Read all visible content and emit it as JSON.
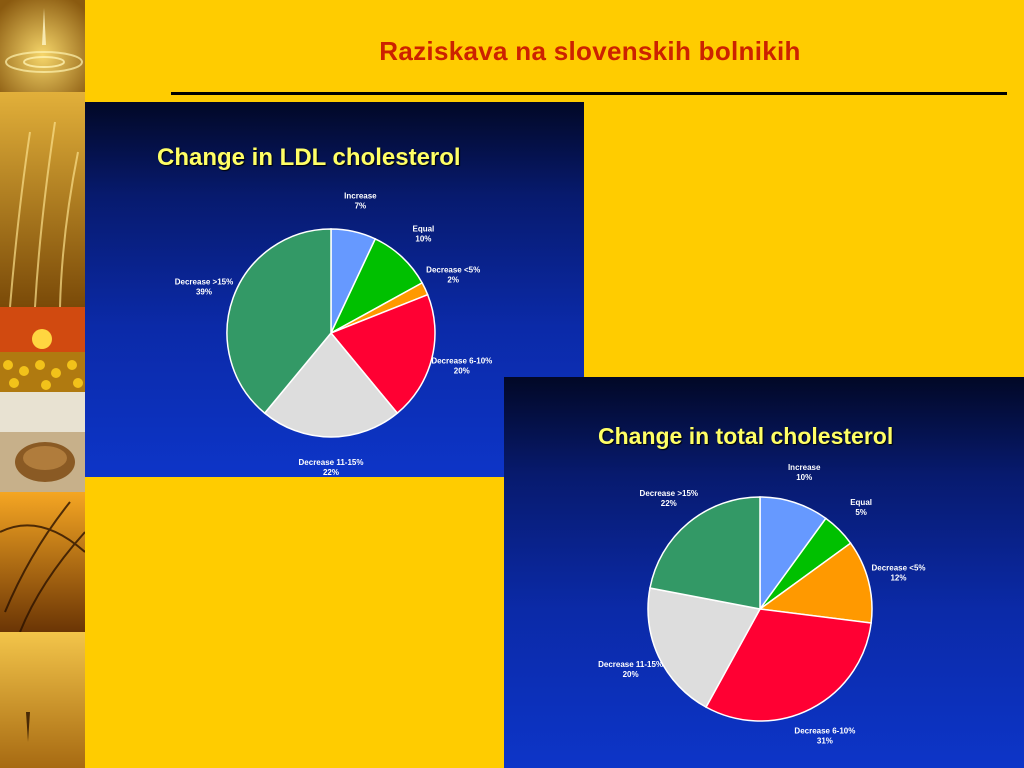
{
  "slide": {
    "title": "Raziskava na slovenskih bolnikih",
    "background": "#FFCC00",
    "title_color": "#CC2200"
  },
  "chart_data": [
    {
      "type": "pie",
      "title": "Change in LDL cholesterol",
      "start_angle_deg": 0,
      "direction": "clockwise",
      "slices": [
        {
          "label": "Increase",
          "value": 7,
          "pct": "7%",
          "color": "#6699FF"
        },
        {
          "label": "Equal",
          "value": 10,
          "pct": "10%",
          "color": "#00C000"
        },
        {
          "label": "Decrease <5%",
          "value": 2,
          "pct": "2%",
          "color": "#FF9900"
        },
        {
          "label": "Decrease 6-10%",
          "value": 20,
          "pct": "20%",
          "color": "#FF0033"
        },
        {
          "label": "Decrease 11-15%",
          "value": 22,
          "pct": "22%",
          "color": "#DDDDDD"
        },
        {
          "label": "Decrease >15%",
          "value": 39,
          "pct": "39%",
          "color": "#339966"
        }
      ]
    },
    {
      "type": "pie",
      "title": "Change in total cholesterol",
      "start_angle_deg": 0,
      "direction": "clockwise",
      "slices": [
        {
          "label": "Increase",
          "value": 10,
          "pct": "10%",
          "color": "#6699FF"
        },
        {
          "label": "Equal",
          "value": 5,
          "pct": "5%",
          "color": "#00C000"
        },
        {
          "label": "Decrease <5%",
          "value": 12,
          "pct": "12%",
          "color": "#FF9900"
        },
        {
          "label": "Decrease 6-10%",
          "value": 31,
          "pct": "31%",
          "color": "#FF0033"
        },
        {
          "label": "Decrease 11-15%",
          "value": 20,
          "pct": "20%",
          "color": "#DDDDDD"
        },
        {
          "label": "Decrease >15%",
          "value": 22,
          "pct": "22%",
          "color": "#339966"
        }
      ]
    }
  ]
}
